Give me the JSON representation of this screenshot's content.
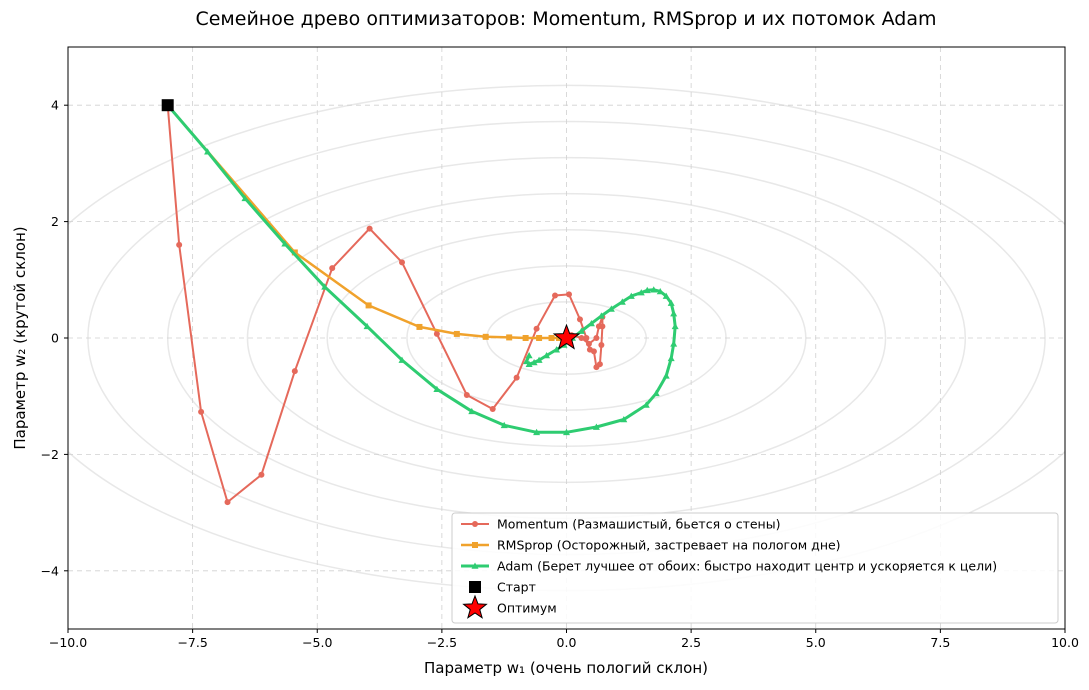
{
  "chart_data": {
    "type": "line",
    "title": "Семейное древо оптимизаторов: Momentum, RMSprop и их потомок Adam",
    "xlabel": "Параметр w₁ (очень пологий склон)",
    "ylabel": "Параметр w₂ (крутой склон)",
    "xlim": [
      -10,
      10
    ],
    "ylim": [
      -5,
      5
    ],
    "xticks": [
      -10,
      -7.5,
      -5,
      -2.5,
      0,
      2.5,
      5,
      7.5,
      10
    ],
    "xtick_labels": [
      "−10.0",
      "−7.5",
      "−5.0",
      "−2.5",
      "0.0",
      "2.5",
      "5.0",
      "7.5",
      "10.0"
    ],
    "yticks": [
      -4,
      -2,
      0,
      2,
      4
    ],
    "ytick_labels": [
      "−4",
      "−2",
      "0",
      "2",
      "4"
    ],
    "grid": true,
    "legend_position": "lower-right",
    "series": [
      {
        "name": "Momentum (Размашистый, бьется о стены)",
        "color": "#e5695b",
        "marker": "circle",
        "points": [
          [
            -8.0,
            4.0
          ],
          [
            -7.77,
            1.6
          ],
          [
            -7.33,
            -1.27
          ],
          [
            -6.8,
            -2.82
          ],
          [
            -6.12,
            -2.35
          ],
          [
            -5.45,
            -0.57
          ],
          [
            -4.7,
            1.2
          ],
          [
            -3.95,
            1.88
          ],
          [
            -3.3,
            1.3
          ],
          [
            -2.6,
            0.07
          ],
          [
            -2.0,
            -0.98
          ],
          [
            -1.48,
            -1.22
          ],
          [
            -1.0,
            -0.68
          ],
          [
            -0.6,
            0.16
          ],
          [
            -0.23,
            0.73
          ],
          [
            0.05,
            0.75
          ],
          [
            0.27,
            0.32
          ],
          [
            0.4,
            0.0
          ],
          [
            0.47,
            -0.2
          ],
          [
            0.55,
            -0.23
          ],
          [
            0.6,
            -0.5
          ],
          [
            0.67,
            -0.45
          ],
          [
            0.7,
            -0.12
          ],
          [
            0.72,
            0.2
          ],
          [
            0.72,
            0.36
          ],
          [
            0.65,
            0.2
          ],
          [
            0.6,
            0.0
          ],
          [
            0.45,
            -0.1
          ],
          [
            0.3,
            0.0
          ],
          [
            0.1,
            0.05
          ],
          [
            0.0,
            0.0
          ]
        ]
      },
      {
        "name": "RMSprop (Осторожный, застревает на пологом дне)",
        "color": "#f0a22c",
        "marker": "square",
        "points": [
          [
            -8.0,
            4.0
          ],
          [
            -5.45,
            1.47
          ],
          [
            -3.97,
            0.56
          ],
          [
            -2.95,
            0.19
          ],
          [
            -2.2,
            0.07
          ],
          [
            -1.62,
            0.02
          ],
          [
            -1.15,
            0.01
          ],
          [
            -0.82,
            0.0
          ],
          [
            -0.55,
            0.0
          ],
          [
            -0.3,
            0.0
          ],
          [
            -0.15,
            0.0
          ],
          [
            0.0,
            0.0
          ]
        ]
      },
      {
        "name": "Adam (Берет лучшее от обоих: быстро находит центр и ускоряется к цели)",
        "color": "#2ecc71",
        "marker": "triangle",
        "points": [
          [
            -8.0,
            4.0
          ],
          [
            -7.2,
            3.2
          ],
          [
            -6.45,
            2.4
          ],
          [
            -5.65,
            1.62
          ],
          [
            -4.85,
            0.88
          ],
          [
            -4.0,
            0.2
          ],
          [
            -3.3,
            -0.38
          ],
          [
            -2.6,
            -0.88
          ],
          [
            -1.9,
            -1.26
          ],
          [
            -1.25,
            -1.5
          ],
          [
            -0.6,
            -1.62
          ],
          [
            0.0,
            -1.62
          ],
          [
            0.6,
            -1.53
          ],
          [
            1.15,
            -1.4
          ],
          [
            1.6,
            -1.15
          ],
          [
            1.8,
            -0.95
          ],
          [
            2.0,
            -0.65
          ],
          [
            2.1,
            -0.35
          ],
          [
            2.15,
            -0.1
          ],
          [
            2.18,
            0.2
          ],
          [
            2.15,
            0.42
          ],
          [
            2.1,
            0.6
          ],
          [
            2.0,
            0.72
          ],
          [
            1.88,
            0.8
          ],
          [
            1.75,
            0.83
          ],
          [
            1.62,
            0.82
          ],
          [
            1.5,
            0.78
          ],
          [
            1.3,
            0.72
          ],
          [
            1.12,
            0.62
          ],
          [
            0.9,
            0.5
          ],
          [
            0.7,
            0.38
          ],
          [
            0.5,
            0.25
          ],
          [
            0.3,
            0.12
          ],
          [
            0.12,
            0.0
          ],
          [
            -0.05,
            -0.12
          ],
          [
            -0.2,
            -0.2
          ],
          [
            -0.4,
            -0.3
          ],
          [
            -0.55,
            -0.38
          ],
          [
            -0.65,
            -0.42
          ],
          [
            -0.75,
            -0.45
          ],
          [
            -0.8,
            -0.4
          ],
          [
            -0.75,
            -0.3
          ]
        ]
      }
    ],
    "markers": [
      {
        "name": "Старт",
        "x": -8,
        "y": 4,
        "shape": "square",
        "color": "#000000"
      },
      {
        "name": "Оптимум",
        "x": 0,
        "y": 0,
        "shape": "star",
        "color": "#ff0000"
      }
    ]
  }
}
